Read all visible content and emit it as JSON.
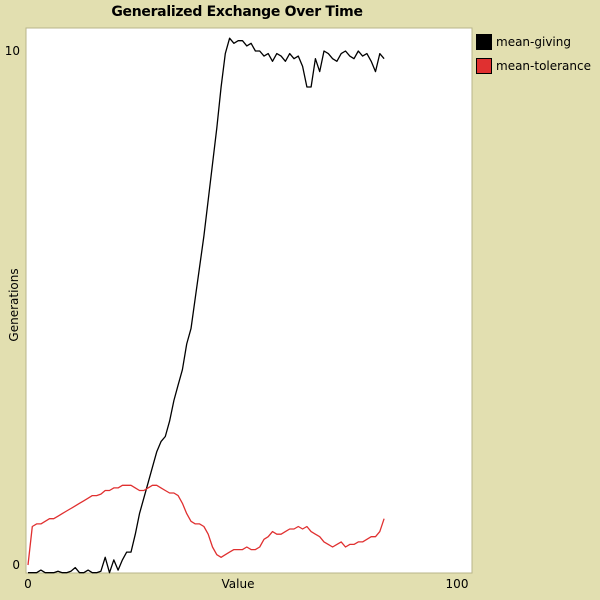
{
  "chart_data": {
    "type": "line",
    "title": "Generalized Exchange Over Time",
    "xlabel": "Value",
    "ylabel": "Generations",
    "xlim": [
      0,
      100
    ],
    "ylim": [
      0,
      10
    ],
    "x_ticks": [
      "0",
      "100"
    ],
    "y_ticks": [
      "0",
      "10"
    ],
    "grid": false,
    "legend_position": "right",
    "background": "#e2dfb0",
    "plot_background": "#ffffff",
    "series": [
      {
        "name": "mean-giving",
        "color": "#000000",
        "x": [
          0,
          1,
          2,
          3,
          4,
          5,
          6,
          7,
          8,
          9,
          10,
          11,
          12,
          13,
          14,
          15,
          16,
          17,
          18,
          19,
          20,
          21,
          22,
          23,
          24,
          25,
          26,
          27,
          28,
          29,
          30,
          31,
          32,
          33,
          34,
          35,
          36,
          37,
          38,
          39,
          40,
          41,
          42,
          43,
          44,
          45,
          46,
          47,
          48,
          49,
          50,
          51,
          52,
          53,
          54,
          55,
          56,
          57,
          58,
          59,
          60,
          61,
          62,
          63,
          64,
          65,
          66,
          67,
          68,
          69,
          70,
          71,
          72,
          73,
          74,
          75,
          76,
          77,
          78,
          79,
          80,
          81,
          82,
          83
        ],
        "y": [
          -0.15,
          -0.15,
          -0.15,
          -0.1,
          -0.15,
          -0.15,
          -0.15,
          -0.12,
          -0.15,
          -0.15,
          -0.12,
          -0.05,
          -0.15,
          -0.15,
          -0.1,
          -0.15,
          -0.15,
          -0.12,
          0.15,
          -0.15,
          0.1,
          -0.1,
          0.1,
          0.25,
          0.25,
          0.6,
          1.0,
          1.3,
          1.6,
          1.9,
          2.2,
          2.4,
          2.5,
          2.8,
          3.2,
          3.5,
          3.8,
          4.3,
          4.6,
          5.2,
          5.8,
          6.4,
          7.1,
          7.8,
          8.5,
          9.3,
          9.95,
          10.25,
          10.15,
          10.2,
          10.2,
          10.1,
          10.15,
          10.0,
          10.0,
          9.9,
          9.95,
          9.8,
          9.95,
          9.9,
          9.8,
          9.95,
          9.85,
          9.9,
          9.7,
          9.3,
          9.3,
          9.85,
          9.6,
          10.0,
          9.95,
          9.85,
          9.8,
          9.95,
          10.0,
          9.9,
          9.85,
          10.0,
          9.9,
          9.95,
          9.8,
          9.6,
          9.95,
          9.85
        ]
      },
      {
        "name": "mean-tolerance",
        "color": "#e03030",
        "x": [
          0,
          1,
          2,
          3,
          4,
          5,
          6,
          7,
          8,
          9,
          10,
          11,
          12,
          13,
          14,
          15,
          16,
          17,
          18,
          19,
          20,
          21,
          22,
          23,
          24,
          25,
          26,
          27,
          28,
          29,
          30,
          31,
          32,
          33,
          34,
          35,
          36,
          37,
          38,
          39,
          40,
          41,
          42,
          43,
          44,
          45,
          46,
          47,
          48,
          49,
          50,
          51,
          52,
          53,
          54,
          55,
          56,
          57,
          58,
          59,
          60,
          61,
          62,
          63,
          64,
          65,
          66,
          67,
          68,
          69,
          70,
          71,
          72,
          73,
          74,
          75,
          76,
          77,
          78,
          79,
          80,
          81,
          82,
          83
        ],
        "y": [
          0.0,
          0.75,
          0.8,
          0.8,
          0.85,
          0.9,
          0.9,
          0.95,
          1.0,
          1.05,
          1.1,
          1.15,
          1.2,
          1.25,
          1.3,
          1.35,
          1.35,
          1.38,
          1.45,
          1.45,
          1.5,
          1.5,
          1.55,
          1.55,
          1.55,
          1.5,
          1.45,
          1.45,
          1.5,
          1.55,
          1.55,
          1.5,
          1.45,
          1.4,
          1.4,
          1.35,
          1.2,
          1.0,
          0.85,
          0.8,
          0.8,
          0.75,
          0.6,
          0.35,
          0.2,
          0.15,
          0.2,
          0.25,
          0.3,
          0.3,
          0.3,
          0.35,
          0.3,
          0.3,
          0.35,
          0.5,
          0.55,
          0.65,
          0.6,
          0.6,
          0.65,
          0.7,
          0.7,
          0.75,
          0.7,
          0.75,
          0.65,
          0.6,
          0.55,
          0.45,
          0.4,
          0.35,
          0.4,
          0.45,
          0.35,
          0.4,
          0.4,
          0.45,
          0.45,
          0.5,
          0.55,
          0.55,
          0.65,
          0.9
        ]
      }
    ]
  }
}
